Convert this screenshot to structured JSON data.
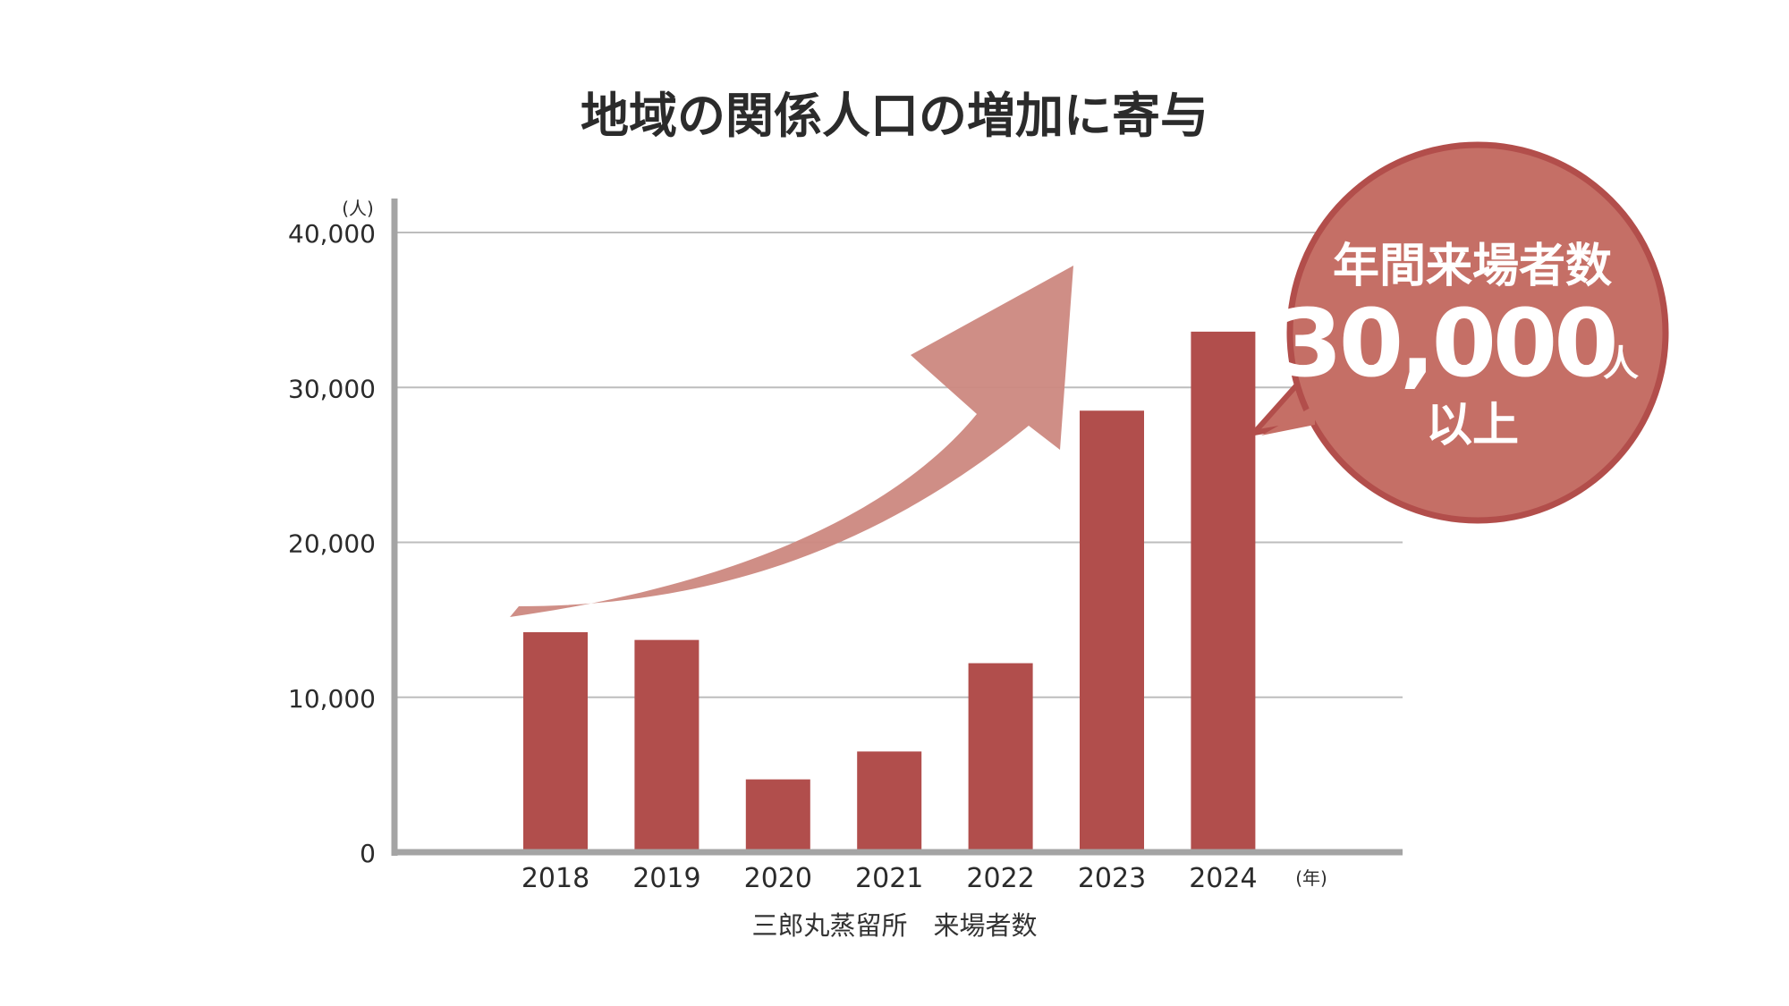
{
  "chart_data": {
    "type": "bar",
    "title": "地域の関係人口の増加に寄与",
    "y_unit": "(人)",
    "x_unit": "(年)",
    "xlabel": "三郎丸蒸留所　来場者数",
    "ylim": [
      0,
      40000
    ],
    "yticks": [
      0,
      10000,
      20000,
      30000,
      40000
    ],
    "ytick_labels": [
      "0",
      "10,000",
      "20,000",
      "30,000",
      "40,000"
    ],
    "categories": [
      "2018",
      "2019",
      "2020",
      "2021",
      "2022",
      "2023",
      "2024"
    ],
    "values": [
      14200,
      13700,
      4700,
      6500,
      12200,
      28500,
      33600
    ],
    "grid": true,
    "colors": {
      "bar": "#b14e4c",
      "arrow": "#cc8880",
      "bubble_fill": "#c56f66",
      "bubble_border": "#b24e4b",
      "axis": "#a4a4a4",
      "grid": "#bdbdbd"
    }
  },
  "callout": {
    "line1": "年間来場者数",
    "number": "30,000",
    "unit": "人",
    "line3": "以上"
  },
  "icons": [
    "trend-arrow-icon"
  ]
}
